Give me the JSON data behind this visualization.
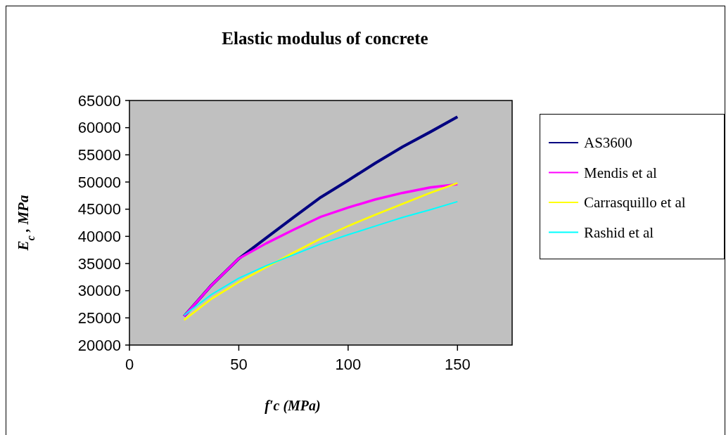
{
  "chart_data": {
    "type": "line",
    "title": "Elastic modulus of concrete",
    "xlabel": "f′c (MPa)",
    "ylabel": "E$_{c}$ , MPa",
    "x": [
      25,
      37.5,
      50,
      62.5,
      75,
      87.5,
      100,
      112.5,
      125,
      137.5,
      150
    ],
    "series": [
      {
        "name": "AS3600",
        "color": "#000080",
        "values": [
          25300,
          31000,
          35900,
          39700,
          43500,
          47200,
          50300,
          53500,
          56500,
          59200,
          62000
        ]
      },
      {
        "name": "Mendis et al",
        "color": "#ff00ff",
        "values": [
          25300,
          31000,
          35900,
          38700,
          41200,
          43600,
          45300,
          46800,
          48000,
          49000,
          49600
        ]
      },
      {
        "name": "Carrasquillo et al",
        "color": "#ffff00",
        "values": [
          24600,
          28500,
          31600,
          34300,
          37000,
          39600,
          41900,
          44000,
          46000,
          48000,
          49800
        ]
      },
      {
        "name": "Rashid et al",
        "color": "#00ffff",
        "values": [
          25500,
          29300,
          32300,
          34600,
          36600,
          38600,
          40300,
          41900,
          43500,
          44900,
          46400
        ]
      }
    ],
    "xlim": [
      0,
      175
    ],
    "xticks": [
      0,
      50,
      100,
      150
    ],
    "ylim": [
      20000,
      65000
    ],
    "yticks": [
      20000,
      25000,
      30000,
      35000,
      40000,
      45000,
      50000,
      55000,
      60000,
      65000
    ],
    "grid": false,
    "legend": "right",
    "marker": "none",
    "line_style": "solid"
  }
}
